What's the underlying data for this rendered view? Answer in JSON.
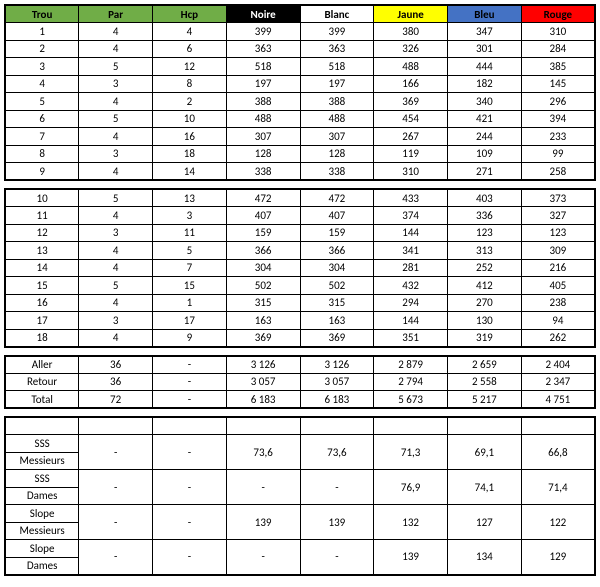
{
  "colors": {
    "trou": "#70ad47",
    "par": "#70ad47",
    "hcp": "#70ad47",
    "noire_bg": "#000000",
    "noire_fg": "#ffffff",
    "blanc": "#ffffff",
    "jaune": "#ffff00",
    "bleu": "#4472c4",
    "rouge": "#ff0000"
  },
  "headers": {
    "trou": "Trou",
    "par": "Par",
    "hcp": "Hcp",
    "noire": "Noire",
    "blanc": "Blanc",
    "jaune": "Jaune",
    "bleu": "Bleu",
    "rouge": "Rouge"
  },
  "front9": [
    {
      "t": "1",
      "p": "4",
      "h": "4",
      "n": "399",
      "b": "399",
      "j": "380",
      "bl": "347",
      "r": "310"
    },
    {
      "t": "2",
      "p": "4",
      "h": "6",
      "n": "363",
      "b": "363",
      "j": "326",
      "bl": "301",
      "r": "284"
    },
    {
      "t": "3",
      "p": "5",
      "h": "12",
      "n": "518",
      "b": "518",
      "j": "488",
      "bl": "444",
      "r": "385"
    },
    {
      "t": "4",
      "p": "3",
      "h": "8",
      "n": "197",
      "b": "197",
      "j": "166",
      "bl": "182",
      "r": "145"
    },
    {
      "t": "5",
      "p": "4",
      "h": "2",
      "n": "388",
      "b": "388",
      "j": "369",
      "bl": "340",
      "r": "296"
    },
    {
      "t": "6",
      "p": "5",
      "h": "10",
      "n": "488",
      "b": "488",
      "j": "454",
      "bl": "421",
      "r": "394"
    },
    {
      "t": "7",
      "p": "4",
      "h": "16",
      "n": "307",
      "b": "307",
      "j": "267",
      "bl": "244",
      "r": "233"
    },
    {
      "t": "8",
      "p": "3",
      "h": "18",
      "n": "128",
      "b": "128",
      "j": "119",
      "bl": "109",
      "r": "99"
    },
    {
      "t": "9",
      "p": "4",
      "h": "14",
      "n": "338",
      "b": "338",
      "j": "310",
      "bl": "271",
      "r": "258"
    }
  ],
  "back9": [
    {
      "t": "10",
      "p": "5",
      "h": "13",
      "n": "472",
      "b": "472",
      "j": "433",
      "bl": "403",
      "r": "373"
    },
    {
      "t": "11",
      "p": "4",
      "h": "3",
      "n": "407",
      "b": "407",
      "j": "374",
      "bl": "336",
      "r": "327"
    },
    {
      "t": "12",
      "p": "3",
      "h": "11",
      "n": "159",
      "b": "159",
      "j": "144",
      "bl": "123",
      "r": "123"
    },
    {
      "t": "13",
      "p": "4",
      "h": "5",
      "n": "366",
      "b": "366",
      "j": "341",
      "bl": "313",
      "r": "309"
    },
    {
      "t": "14",
      "p": "4",
      "h": "7",
      "n": "304",
      "b": "304",
      "j": "281",
      "bl": "252",
      "r": "216"
    },
    {
      "t": "15",
      "p": "5",
      "h": "15",
      "n": "502",
      "b": "502",
      "j": "432",
      "bl": "412",
      "r": "405"
    },
    {
      "t": "16",
      "p": "4",
      "h": "1",
      "n": "315",
      "b": "315",
      "j": "294",
      "bl": "270",
      "r": "238"
    },
    {
      "t": "17",
      "p": "3",
      "h": "17",
      "n": "163",
      "b": "163",
      "j": "144",
      "bl": "130",
      "r": "94"
    },
    {
      "t": "18",
      "p": "4",
      "h": "9",
      "n": "369",
      "b": "369",
      "j": "351",
      "bl": "319",
      "r": "262"
    }
  ],
  "totals": [
    {
      "t": "Aller",
      "p": "36",
      "h": "-",
      "n": "3 126",
      "b": "3 126",
      "j": "2 879",
      "bl": "2 659",
      "r": "2 404"
    },
    {
      "t": "Retour",
      "p": "36",
      "h": "-",
      "n": "3 057",
      "b": "3 057",
      "j": "2 794",
      "bl": "2 558",
      "r": "2 347"
    },
    {
      "t": "Total",
      "p": "72",
      "h": "-",
      "n": "6 183",
      "b": "6 183",
      "j": "5 673",
      "bl": "5 217",
      "r": "4 751"
    }
  ],
  "ratings": [
    {
      "l1": "SSS",
      "l2": "Messieurs",
      "p": "-",
      "h": "-",
      "n": "73,6",
      "b": "73,6",
      "j": "71,3",
      "bl": "69,1",
      "r": "66,8"
    },
    {
      "l1": "SSS",
      "l2": "Dames",
      "p": "-",
      "h": "-",
      "n": "-",
      "b": "-",
      "j": "76,9",
      "bl": "74,1",
      "r": "71,4"
    },
    {
      "l1": "Slope",
      "l2": "Messieurs",
      "p": "-",
      "h": "-",
      "n": "139",
      "b": "139",
      "j": "132",
      "bl": "127",
      "r": "122"
    },
    {
      "l1": "Slope",
      "l2": "Dames",
      "p": "-",
      "h": "-",
      "n": "-",
      "b": "-",
      "j": "139",
      "bl": "134",
      "r": "129"
    }
  ]
}
